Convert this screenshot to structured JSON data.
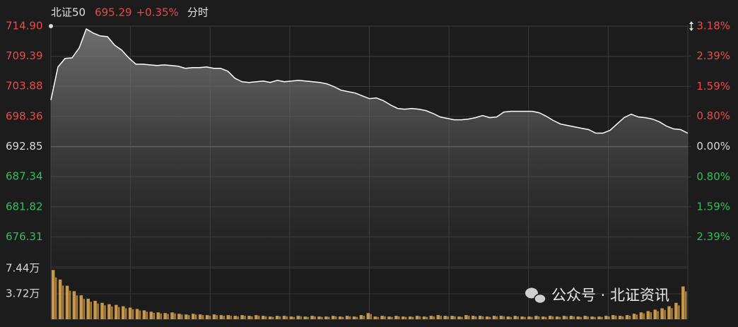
{
  "chart_data": {
    "type": "line",
    "title": "北证50",
    "price": 695.29,
    "change_label": "+0.35%",
    "mode": "分时",
    "watermark": "公众号 · 北证资讯",
    "color": "#ffffff",
    "grid": true,
    "ylim": [
      670.8,
      714.9
    ],
    "yticks": [
      {
        "value": 714.9,
        "label": "714.90"
      },
      709.39,
      703.88,
      698.36,
      692.85,
      687.34,
      681.82,
      676.31
    ],
    "y2lim": [
      -3.18,
      3.18
    ],
    "y2ticks": [
      {
        "value": 3.18,
        "label": "3.18%"
      },
      {
        "value": 2.39,
        "label": "2.39%"
      },
      {
        "value": 1.59,
        "label": "1.59%"
      },
      {
        "value": 0.8,
        "label": "0.80%"
      },
      {
        "value": 0,
        "label": "0.00%"
      },
      {
        "value": -0.8,
        "label": "0.80%"
      },
      {
        "value": -1.59,
        "label": "1.59%"
      },
      {
        "value": -2.39,
        "label": "2.39%"
      }
    ],
    "values": [
      701.36,
      707.43,
      708.98,
      709.1,
      710.91,
      714.39,
      713.62,
      713.1,
      712.97,
      711.43,
      710.52,
      709.1,
      707.94,
      707.94,
      707.81,
      707.69,
      707.81,
      707.69,
      707.56,
      707.17,
      707.3,
      707.3,
      707.43,
      707.17,
      707.17,
      706.65,
      705.36,
      704.72,
      704.59,
      704.72,
      704.85,
      704.59,
      704.98,
      704.72,
      704.85,
      704.98,
      704.85,
      704.72,
      704.59,
      704.33,
      703.82,
      703.17,
      702.91,
      702.65,
      702.14,
      701.62,
      701.75,
      701.24,
      700.46,
      699.82,
      699.69,
      699.82,
      699.69,
      699.43,
      698.91,
      698.27,
      698.01,
      697.75,
      697.75,
      697.88,
      698.14,
      698.53,
      698.14,
      698.27,
      699.17,
      699.3,
      699.3,
      699.3,
      699.3,
      699.04,
      698.4,
      697.62,
      696.98,
      696.72,
      696.46,
      696.2,
      695.95,
      695.3,
      695.3,
      695.82,
      696.98,
      698.14,
      698.78,
      698.27,
      698.14,
      697.88,
      697.37,
      696.59,
      696.08,
      695.95,
      695.29
    ],
    "volume": {
      "color": "#c9984b",
      "ylim": [
        0,
        7.44
      ],
      "yticks": [
        {
          "value": 7.44,
          "label": "7.44万"
        },
        {
          "value": 3.72,
          "label": "3.72万"
        }
      ],
      "values": [
        7.2,
        5.8,
        4.9,
        4.1,
        3.5,
        3.0,
        2.7,
        2.4,
        2.2,
        2.1,
        1.9,
        1.7,
        1.5,
        1.3,
        1.1,
        1.0,
        0.9,
        1.0,
        0.8,
        0.7,
        0.8,
        0.7,
        0.6,
        0.7,
        0.6,
        0.6,
        0.5,
        0.6,
        0.5,
        0.6,
        0.5,
        0.4,
        0.5,
        0.5,
        0.4,
        0.5,
        0.4,
        0.5,
        0.4,
        0.4,
        0.5,
        0.4,
        0.5,
        0.4,
        0.6,
        0.9,
        0.4,
        0.5,
        0.4,
        0.5,
        0.4,
        0.4,
        0.5,
        0.4,
        0.5,
        0.6,
        0.5,
        0.5,
        0.4,
        0.6,
        0.5,
        0.5,
        0.4,
        0.5,
        0.5,
        0.4,
        0.5,
        0.4,
        0.4,
        0.5,
        0.4,
        0.5,
        0.4,
        0.5,
        0.5,
        0.4,
        0.5,
        0.4,
        0.4,
        0.5,
        0.6,
        0.5,
        0.6,
        0.8,
        1.0,
        1.2,
        1.4,
        1.6,
        1.9,
        2.4,
        4.8
      ]
    }
  }
}
